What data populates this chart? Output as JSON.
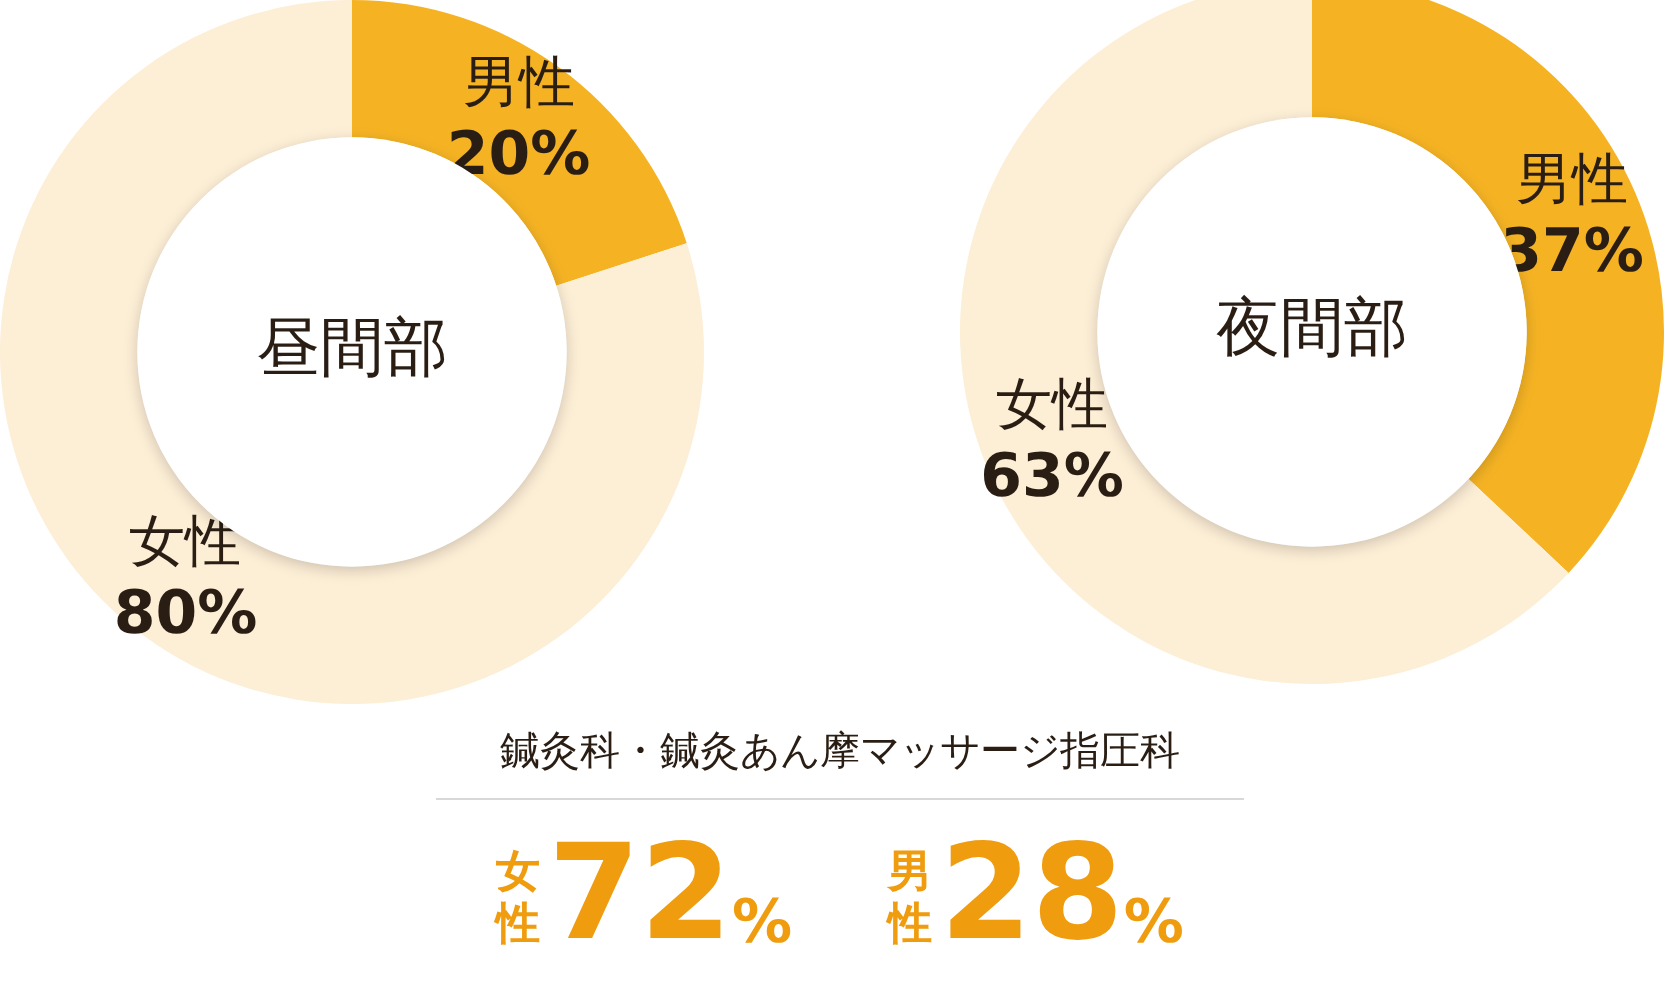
{
  "chart_data": [
    {
      "type": "donut",
      "title": "昼間部",
      "categories": [
        "男性",
        "女性"
      ],
      "values": [
        20,
        80
      ],
      "colors": [
        "#f5b324",
        "#fdeed6"
      ],
      "value_labels": [
        "20%",
        "80%"
      ]
    },
    {
      "type": "donut",
      "title": "夜間部",
      "categories": [
        "男性",
        "女性"
      ],
      "values": [
        37,
        63
      ],
      "colors": [
        "#f5b324",
        "#fdeed6"
      ],
      "value_labels": [
        "37%",
        "63%"
      ]
    },
    {
      "type": "other",
      "title": "鍼灸科・鍼灸あん摩マッサージ指圧科",
      "annotations": [
        "女性",
        "72%",
        "男性",
        "28%"
      ]
    }
  ]
}
